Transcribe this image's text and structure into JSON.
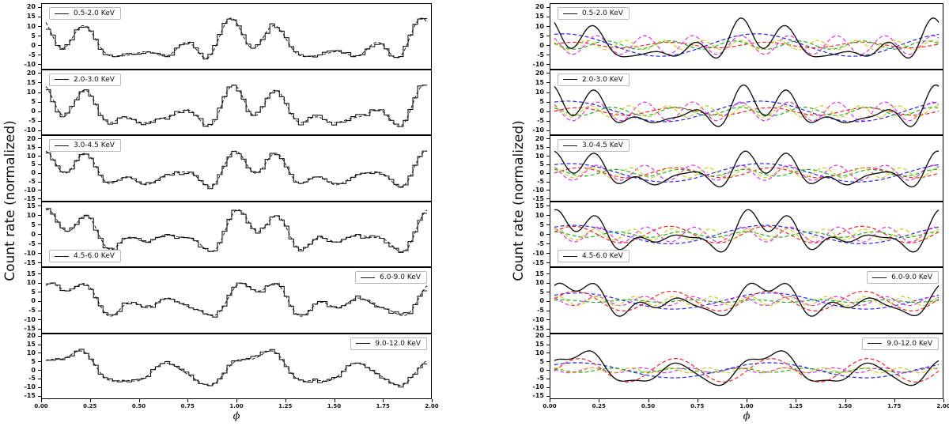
{
  "page": {
    "background": "#ffffff"
  },
  "left_figure": {
    "ylabel": "Count rate (normalized)",
    "xlabel": "ϕ",
    "content": "pulse profile step histograms with dashed best-fit model"
  },
  "right_figure": {
    "ylabel": "Count rate (normalized)",
    "xlabel": "ϕ",
    "content": "solid model profiles with dashed harmonic components"
  },
  "chart_data": {
    "type": "line",
    "x_range": [
      0,
      2
    ],
    "x_tick_labels": [
      "0.00",
      "0.25",
      "0.50",
      "0.75",
      "1.00",
      "1.25",
      "1.50",
      "1.75",
      "2.00"
    ],
    "xlabel": "ϕ",
    "ylabel": "Count rate (normalized)",
    "grid": false,
    "model_color": "#111111",
    "histogram_color": "#111111",
    "harmonic_colors": [
      "#2222ee",
      "#ee2222",
      "#22aa22",
      "#dd33dd",
      "#cccc22"
    ],
    "harmonic_orders": [
      1,
      2,
      3,
      4,
      5
    ],
    "bins_per_two_phases": 80,
    "noise_amplitude": 1.5,
    "bands": [
      {
        "label": "0.5-2.0 KeV",
        "legend_pos": "top-left",
        "ylim": [
          -12.5,
          22
        ],
        "yticks": [
          20,
          15,
          10,
          5,
          0,
          -5,
          -10
        ],
        "noise_seed": 7,
        "harmonics": [
          {
            "n": 1,
            "amp": 6.0,
            "peak": 0.05
          },
          {
            "n": 2,
            "amp": 1.5,
            "peak": 0.1
          },
          {
            "n": 3,
            "amp": 2.2,
            "peak": 0.27
          },
          {
            "n": 4,
            "amp": 5.0,
            "peak": 0.47
          },
          {
            "n": 5,
            "amp": 2.5,
            "peak": 0.17
          }
        ]
      },
      {
        "label": "2.0-3.0 KeV",
        "legend_pos": "top-left",
        "ylim": [
          -12.5,
          22
        ],
        "yticks": [
          20,
          15,
          10,
          5,
          0,
          -5,
          -10
        ],
        "noise_seed": 13,
        "harmonics": [
          {
            "n": 1,
            "amp": 5.5,
            "peak": 0.07
          },
          {
            "n": 2,
            "amp": 2.0,
            "peak": 0.12
          },
          {
            "n": 3,
            "amp": 2.2,
            "peak": 0.3
          },
          {
            "n": 4,
            "amp": 5.0,
            "peak": 0.47
          },
          {
            "n": 5,
            "amp": 3.0,
            "peak": 0.19
          }
        ]
      },
      {
        "label": "3.0-4.5 KeV",
        "legend_pos": "top-left",
        "ylim": [
          -16.5,
          22
        ],
        "yticks": [
          20,
          15,
          10,
          5,
          0,
          -5,
          -10,
          -15
        ],
        "noise_seed": 21,
        "harmonics": [
          {
            "n": 1,
            "amp": 5.5,
            "peak": 0.08
          },
          {
            "n": 2,
            "amp": 3.0,
            "peak": 0.13
          },
          {
            "n": 3,
            "amp": 2.0,
            "peak": 0.32
          },
          {
            "n": 4,
            "amp": 4.5,
            "peak": 0.47
          },
          {
            "n": 5,
            "amp": 3.0,
            "peak": 0.2
          }
        ]
      },
      {
        "label": "4.5-6.0 KeV",
        "legend_pos": "bottom-left",
        "ylim": [
          -17.5,
          17.5
        ],
        "yticks": [
          15,
          10,
          5,
          0,
          -5,
          -10,
          -15
        ],
        "noise_seed": 5,
        "harmonics": [
          {
            "n": 1,
            "amp": 5.0,
            "peak": 0.1
          },
          {
            "n": 2,
            "amp": 4.5,
            "peak": 0.1
          },
          {
            "n": 3,
            "amp": 1.5,
            "peak": 0.33
          },
          {
            "n": 4,
            "amp": 4.0,
            "peak": 0.48
          },
          {
            "n": 5,
            "amp": 3.0,
            "peak": 0.21
          }
        ]
      },
      {
        "label": "6.0-9.0 KeV",
        "legend_pos": "top-right",
        "ylim": [
          -17.5,
          18.5
        ],
        "yticks": [
          15,
          10,
          5,
          0,
          -5,
          -10,
          -15
        ],
        "noise_seed": 11,
        "harmonics": [
          {
            "n": 1,
            "amp": 4.5,
            "peak": 0.12
          },
          {
            "n": 2,
            "amp": 5.5,
            "peak": 0.11
          },
          {
            "n": 3,
            "amp": 0.7,
            "peak": 0.05
          },
          {
            "n": 4,
            "amp": 2.5,
            "peak": 0.47
          },
          {
            "n": 5,
            "amp": 2.5,
            "peak": 0.22
          }
        ]
      },
      {
        "label": "9.0-12.0 KeV",
        "legend_pos": "top-right",
        "ylim": [
          -17.0,
          21.5
        ],
        "yticks": [
          20,
          15,
          10,
          5,
          0,
          -5,
          -10,
          -15
        ],
        "noise_seed": 3,
        "harmonics": [
          {
            "n": 1,
            "amp": 4.5,
            "peak": 0.12
          },
          {
            "n": 2,
            "amp": 7.0,
            "peak": 0.13
          },
          {
            "n": 3,
            "amp": 1.2,
            "peak": 0.3
          },
          {
            "n": 4,
            "amp": 1.5,
            "peak": 0.45
          },
          {
            "n": 5,
            "amp": 1.5,
            "peak": 0.2
          }
        ]
      }
    ]
  }
}
